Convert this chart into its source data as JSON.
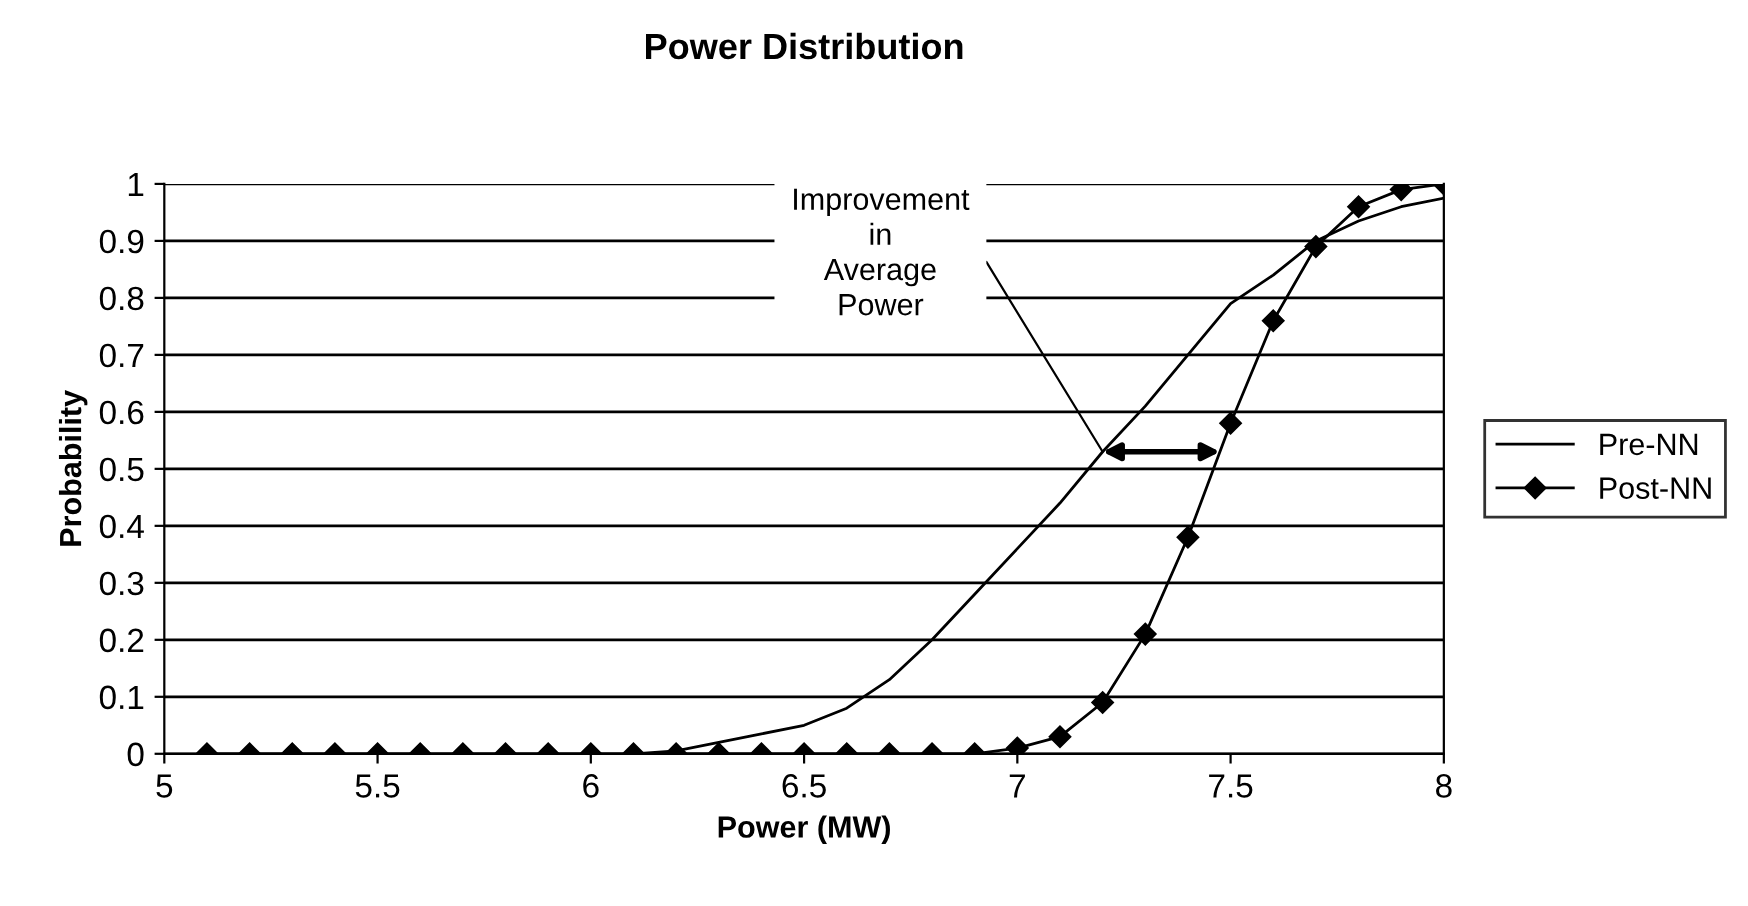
{
  "chart_data": {
    "type": "line",
    "title": "Power Distribution",
    "xlabel": "Power (MW)",
    "ylabel": "Probability",
    "xlim": [
      5,
      8
    ],
    "xticks": [
      5,
      5.5,
      6,
      6.5,
      7,
      7.5,
      8
    ],
    "ylim": [
      0,
      1
    ],
    "yticks": [
      0,
      0.1,
      0.2,
      0.3,
      0.4,
      0.5,
      0.6,
      0.7,
      0.8,
      0.9,
      1
    ],
    "grid": "y",
    "legend": "right",
    "series": [
      {
        "name": "Pre-NN",
        "color": "#000000",
        "marker": "none",
        "x": [
          6.1,
          6.2,
          6.3,
          6.4,
          6.5,
          6.6,
          6.7,
          6.8,
          6.9,
          7.0,
          7.1,
          7.2,
          7.3,
          7.4,
          7.5,
          7.6,
          7.7,
          7.8,
          7.9,
          8.0
        ],
        "values": [
          0,
          0.005,
          0.02,
          0.035,
          0.05,
          0.08,
          0.13,
          0.2,
          0.28,
          0.36,
          0.44,
          0.53,
          0.61,
          0.7,
          0.79,
          0.84,
          0.9,
          0.935,
          0.96,
          0.975
        ]
      },
      {
        "name": "Post-NN",
        "color": "#000000",
        "marker": "diamond",
        "x": [
          5.1,
          5.2,
          5.3,
          5.4,
          5.5,
          5.6,
          5.7,
          5.8,
          5.9,
          6.0,
          6.1,
          6.2,
          6.3,
          6.4,
          6.5,
          6.6,
          6.7,
          6.8,
          6.9,
          7.0,
          7.1,
          7.2,
          7.3,
          7.4,
          7.5,
          7.6,
          7.7,
          7.8,
          7.9,
          8.0
        ],
        "values": [
          0,
          0,
          0,
          0,
          0,
          0,
          0,
          0,
          0,
          0,
          0,
          0,
          0,
          0,
          0,
          0,
          0,
          0,
          0,
          0.01,
          0.03,
          0.09,
          0.21,
          0.38,
          0.58,
          0.76,
          0.89,
          0.96,
          0.99,
          1.0
        ]
      }
    ],
    "annotations": [
      {
        "text": "Improvement\nin\nAverage\nPower",
        "x": 7.2,
        "y": 0.53
      }
    ]
  }
}
